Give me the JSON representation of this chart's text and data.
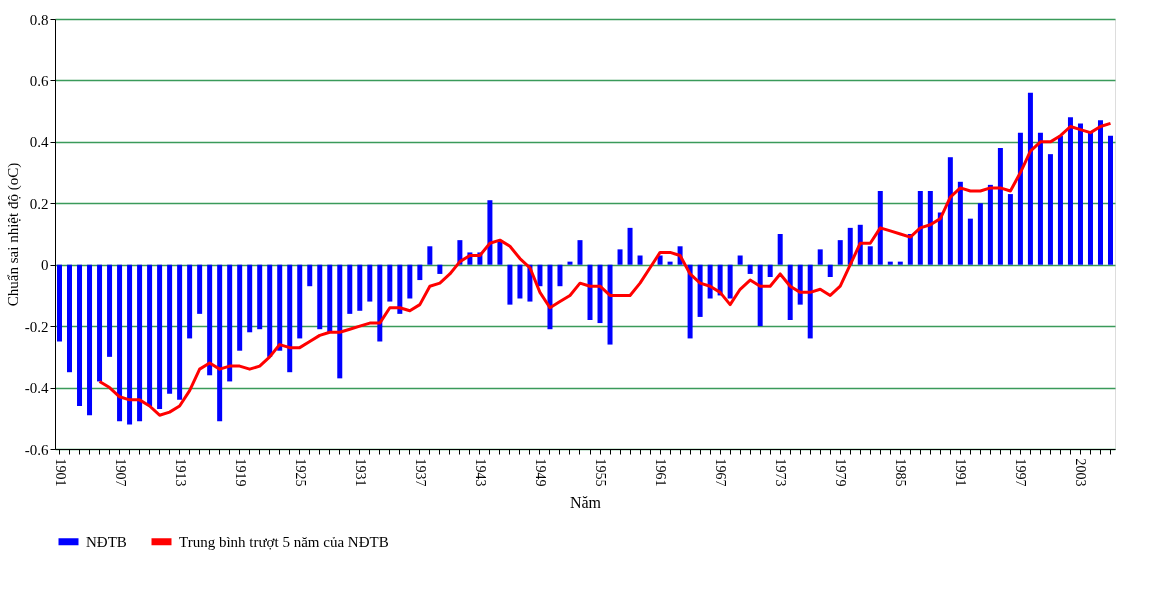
{
  "chart_data": {
    "type": "bar",
    "xlabel": "Năm",
    "ylabel": "Chuẩn sai nhiệt độ (oC)",
    "categories": [
      "1901",
      null,
      null,
      null,
      null,
      null,
      "1907",
      null,
      null,
      null,
      null,
      null,
      "1913",
      null,
      null,
      null,
      null,
      null,
      "1919",
      null,
      null,
      null,
      null,
      null,
      "1925",
      null,
      null,
      null,
      null,
      null,
      "1931",
      null,
      null,
      null,
      null,
      null,
      "1937",
      null,
      null,
      null,
      null,
      null,
      "1943",
      null,
      null,
      null,
      null,
      null,
      "1949",
      null,
      null,
      null,
      null,
      null,
      "1955",
      null,
      null,
      null,
      null,
      null,
      "1961",
      null,
      null,
      null,
      null,
      null,
      "1967",
      null,
      null,
      null,
      null,
      null,
      "1973",
      null,
      null,
      null,
      null,
      null,
      "1979",
      null,
      null,
      null,
      null,
      null,
      "1985",
      null,
      null,
      null,
      null,
      null,
      "1991",
      null,
      null,
      null,
      null,
      null,
      "1997",
      null,
      null,
      null,
      null,
      null,
      "2003",
      null,
      null,
      null
    ],
    "series": [
      {
        "name": "NĐTB",
        "color": "#0000ff",
        "values": [
          -0.25,
          -0.35,
          -0.46,
          -0.49,
          -0.38,
          -0.3,
          -0.51,
          -0.52,
          -0.51,
          -0.46,
          -0.47,
          -0.42,
          -0.44,
          -0.24,
          -0.16,
          -0.36,
          -0.51,
          -0.38,
          -0.28,
          -0.22,
          -0.21,
          -0.3,
          -0.28,
          -0.35,
          -0.24,
          -0.07,
          -0.21,
          -0.22,
          -0.37,
          -0.16,
          -0.15,
          -0.12,
          -0.25,
          -0.12,
          -0.16,
          -0.11,
          -0.05,
          0.06,
          -0.03,
          0,
          0.08,
          0.04,
          0.04,
          0.21,
          0.08,
          -0.13,
          -0.11,
          -0.12,
          -0.07,
          -0.21,
          -0.07,
          0.01,
          0.08,
          -0.18,
          -0.19,
          -0.26,
          0.05,
          0.12,
          0.03,
          0,
          0.03,
          0.01,
          0.06,
          -0.24,
          -0.17,
          -0.11,
          -0.1,
          -0.11,
          0.03,
          -0.03,
          -0.2,
          -0.04,
          0.1,
          -0.18,
          -0.13,
          -0.24,
          0.05,
          -0.04,
          0.08,
          0.12,
          0.13,
          0.06,
          0.24,
          0.01,
          0.01,
          0.1,
          0.24,
          0.24,
          0.17,
          0.35,
          0.27,
          0.15,
          0.2,
          0.26,
          0.38,
          0.23,
          0.43,
          0.56,
          0.43,
          0.36,
          0.42,
          0.48,
          0.46,
          0.43,
          0.47,
          0.42
        ]
      },
      {
        "name": "Trung bình trượt 5 năm của NĐTB",
        "type": "line",
        "color": "#ff0000",
        "values": [
          null,
          null,
          null,
          null,
          -0.38,
          -0.4,
          -0.43,
          -0.44,
          -0.44,
          -0.46,
          -0.49,
          -0.48,
          -0.46,
          -0.41,
          -0.34,
          -0.32,
          -0.34,
          -0.33,
          -0.33,
          -0.34,
          -0.33,
          -0.3,
          -0.26,
          -0.27,
          -0.27,
          -0.25,
          -0.23,
          -0.22,
          -0.22,
          -0.21,
          -0.2,
          -0.19,
          -0.19,
          -0.14,
          -0.14,
          -0.15,
          -0.13,
          -0.07,
          -0.06,
          -0.03,
          0.01,
          0.03,
          0.03,
          0.07,
          0.08,
          0.06,
          0.02,
          -0.01,
          -0.09,
          -0.14,
          -0.12,
          -0.1,
          -0.06,
          -0.07,
          -0.07,
          -0.1,
          -0.1,
          -0.1,
          -0.06,
          -0.01,
          0.04,
          0.04,
          0.03,
          -0.03,
          -0.06,
          -0.07,
          -0.09,
          -0.13,
          -0.08,
          -0.05,
          -0.07,
          -0.07,
          -0.03,
          -0.07,
          -0.09,
          -0.09,
          -0.08,
          -0.1,
          -0.07,
          0,
          0.07,
          0.07,
          0.12,
          0.11,
          0.1,
          0.09,
          0.12,
          0.13,
          0.15,
          0.22,
          0.25,
          0.24,
          0.24,
          0.25,
          0.25,
          0.24,
          0.3,
          0.37,
          0.4,
          0.4,
          0.42,
          0.45,
          0.44,
          0.43,
          0.45,
          0.46
        ]
      }
    ],
    "ylim": [
      -0.6,
      0.8
    ],
    "yticks": [
      -0.6,
      -0.4,
      -0.2,
      0,
      0.2,
      0.4,
      0.6,
      0.8
    ],
    "grid": "y",
    "legend": "bottom"
  }
}
